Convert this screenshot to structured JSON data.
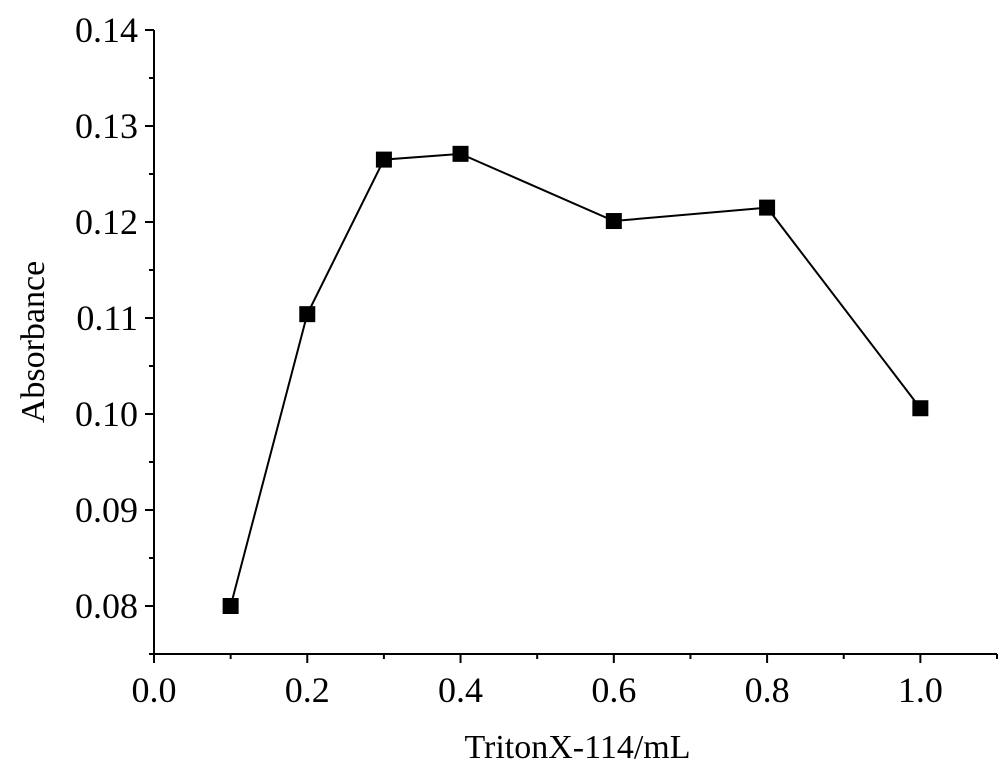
{
  "chart_data": {
    "type": "line",
    "title": "",
    "xlabel": "TritonX-114/mL",
    "ylabel": "Absorbance",
    "xlim": [
      0.0,
      1.1
    ],
    "ylim": [
      0.075,
      0.14
    ],
    "x_ticks": [
      "0.0",
      "0.2",
      "0.4",
      "0.6",
      "0.8",
      "1.0"
    ],
    "y_ticks": [
      "0.08",
      "0.09",
      "0.10",
      "0.11",
      "0.12",
      "0.13",
      "0.14"
    ],
    "grid": false,
    "legend": "none",
    "marker": "square",
    "color": "#000000",
    "series": [
      {
        "x": [
          0.1,
          0.2,
          0.3,
          0.4,
          0.6,
          0.8,
          1.0
        ],
        "y": [
          0.08,
          0.1104,
          0.1265,
          0.1271,
          0.1201,
          0.1215,
          0.1006
        ]
      }
    ]
  }
}
